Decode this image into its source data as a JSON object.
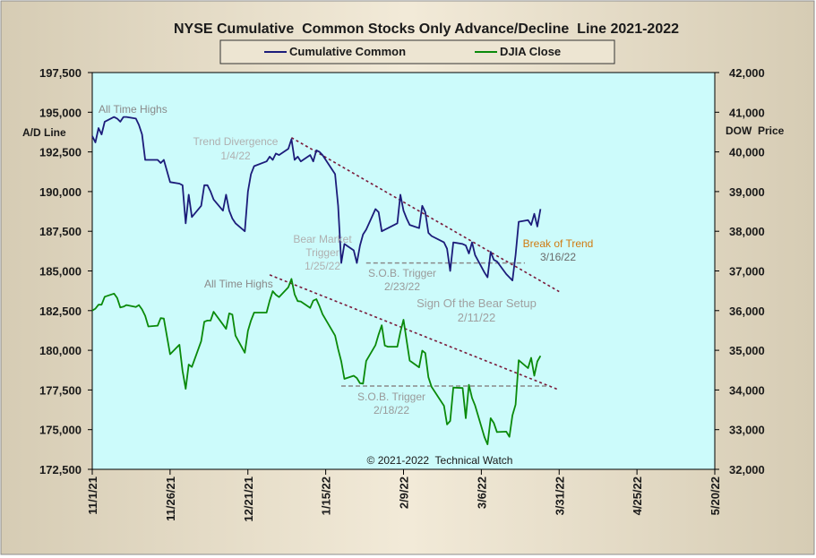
{
  "chart_data": {
    "type": "line",
    "title": "NYSE Cumulative  Common Stocks Only Advance/Decline  Line 2021-2022",
    "ylabel_left": "A/D Line",
    "ylabel_right": "DOW  Price",
    "copyright": "© 2021-2022  Technical Watch",
    "x_ticks": [
      "11/1/21",
      "11/26/21",
      "12/21/21",
      "1/15/22",
      "2/9/22",
      "3/6/22",
      "3/31/22",
      "4/25/22",
      "5/20/22"
    ],
    "x_range": [
      "2021-11-01",
      "2022-05-20"
    ],
    "y_left_ticks": [
      "172,500",
      "175,000",
      "177,500",
      "180,000",
      "182,500",
      "185,000",
      "187,500",
      "190,000",
      "192,500",
      "195,000",
      "197,500"
    ],
    "y_left_range": [
      172500,
      197500
    ],
    "y_right_ticks": [
      "32,000",
      "33,000",
      "34,000",
      "35,000",
      "36,000",
      "37,000",
      "38,000",
      "39,000",
      "40,000",
      "41,000",
      "42,000"
    ],
    "y_right_range": [
      32000,
      42000
    ],
    "grid": false,
    "legend_position": "top-center",
    "series": [
      {
        "name": "Cumulative Common",
        "axis": "left",
        "color": "#1c1c7a",
        "x": [
          "2021-11-01",
          "2021-11-02",
          "2021-11-03",
          "2021-11-04",
          "2021-11-05",
          "2021-11-08",
          "2021-11-09",
          "2021-11-10",
          "2021-11-11",
          "2021-11-12",
          "2021-11-15",
          "2021-11-16",
          "2021-11-17",
          "2021-11-18",
          "2021-11-19",
          "2021-11-22",
          "2021-11-23",
          "2021-11-24",
          "2021-11-26",
          "2021-11-29",
          "2021-11-30",
          "2021-12-01",
          "2021-12-02",
          "2021-12-03",
          "2021-12-06",
          "2021-12-07",
          "2021-12-08",
          "2021-12-09",
          "2021-12-10",
          "2021-12-13",
          "2021-12-14",
          "2021-12-15",
          "2021-12-16",
          "2021-12-17",
          "2021-12-20",
          "2021-12-21",
          "2021-12-22",
          "2021-12-23",
          "2021-12-27",
          "2021-12-28",
          "2021-12-29",
          "2021-12-30",
          "2021-12-31",
          "2022-01-03",
          "2022-01-04",
          "2022-01-05",
          "2022-01-06",
          "2022-01-07",
          "2022-01-10",
          "2022-01-11",
          "2022-01-12",
          "2022-01-13",
          "2022-01-14",
          "2022-01-18",
          "2022-01-19",
          "2022-01-20",
          "2022-01-21",
          "2022-01-24",
          "2022-01-25",
          "2022-01-26",
          "2022-01-27",
          "2022-01-28",
          "2022-01-31",
          "2022-02-01",
          "2022-02-02",
          "2022-02-03",
          "2022-02-04",
          "2022-02-07",
          "2022-02-08",
          "2022-02-09",
          "2022-02-10",
          "2022-02-11",
          "2022-02-14",
          "2022-02-15",
          "2022-02-16",
          "2022-02-17",
          "2022-02-18",
          "2022-02-22",
          "2022-02-23",
          "2022-02-24",
          "2022-02-25",
          "2022-02-28",
          "2022-03-01",
          "2022-03-02",
          "2022-03-03",
          "2022-03-04",
          "2022-03-07",
          "2022-03-08",
          "2022-03-09",
          "2022-03-10",
          "2022-03-11",
          "2022-03-14",
          "2022-03-15",
          "2022-03-16",
          "2022-03-17",
          "2022-03-18",
          "2022-03-21",
          "2022-03-22",
          "2022-03-23",
          "2022-03-24",
          "2022-03-25"
        ],
        "values": [
          193500,
          193100,
          194000,
          193600,
          194400,
          194700,
          194600,
          194400,
          194700,
          194700,
          194600,
          194200,
          193600,
          192000,
          192000,
          192000,
          191800,
          192000,
          190600,
          190500,
          190400,
          188000,
          189800,
          188400,
          189100,
          190400,
          190400,
          190000,
          189500,
          188800,
          189800,
          188800,
          188300,
          188000,
          187500,
          190000,
          191100,
          191600,
          191900,
          192200,
          192000,
          192400,
          192300,
          192700,
          193300,
          192000,
          192200,
          191900,
          192300,
          191900,
          192600,
          192500,
          192300,
          191100,
          189100,
          185500,
          186700,
          186300,
          185500,
          186600,
          187300,
          187600,
          188900,
          188700,
          187500,
          187600,
          187700,
          188000,
          189800,
          188800,
          188300,
          187900,
          187700,
          189100,
          188700,
          187400,
          187200,
          186800,
          186400,
          185000,
          186800,
          186700,
          186600,
          186100,
          186800,
          186000,
          184900,
          184600,
          186200,
          185700,
          185600,
          184800,
          184600,
          184400,
          186000,
          188100,
          188200,
          187900,
          188600,
          187800,
          188900
        ]
      },
      {
        "name": "DJIA Close",
        "axis": "right",
        "color": "#0a8a0a",
        "x": [
          "2021-11-01",
          "2021-11-02",
          "2021-11-03",
          "2021-11-04",
          "2021-11-05",
          "2021-11-08",
          "2021-11-09",
          "2021-11-10",
          "2021-11-11",
          "2021-11-12",
          "2021-11-15",
          "2021-11-16",
          "2021-11-17",
          "2021-11-18",
          "2021-11-19",
          "2021-11-22",
          "2021-11-23",
          "2021-11-24",
          "2021-11-26",
          "2021-11-29",
          "2021-11-30",
          "2021-12-01",
          "2021-12-02",
          "2021-12-03",
          "2021-12-06",
          "2021-12-07",
          "2021-12-08",
          "2021-12-09",
          "2021-12-10",
          "2021-12-13",
          "2021-12-14",
          "2021-12-15",
          "2021-12-16",
          "2021-12-17",
          "2021-12-20",
          "2021-12-21",
          "2021-12-22",
          "2021-12-23",
          "2021-12-27",
          "2021-12-28",
          "2021-12-29",
          "2021-12-30",
          "2021-12-31",
          "2022-01-03",
          "2022-01-04",
          "2022-01-05",
          "2022-01-06",
          "2022-01-07",
          "2022-01-10",
          "2022-01-11",
          "2022-01-12",
          "2022-01-13",
          "2022-01-14",
          "2022-01-18",
          "2022-01-19",
          "2022-01-20",
          "2022-01-21",
          "2022-01-24",
          "2022-01-25",
          "2022-01-26",
          "2022-01-27",
          "2022-01-28",
          "2022-01-31",
          "2022-02-01",
          "2022-02-02",
          "2022-02-03",
          "2022-02-04",
          "2022-02-07",
          "2022-02-08",
          "2022-02-09",
          "2022-02-10",
          "2022-02-11",
          "2022-02-14",
          "2022-02-15",
          "2022-02-16",
          "2022-02-17",
          "2022-02-18",
          "2022-02-22",
          "2022-02-23",
          "2022-02-24",
          "2022-02-25",
          "2022-02-28",
          "2022-03-01",
          "2022-03-02",
          "2022-03-03",
          "2022-03-04",
          "2022-03-07",
          "2022-03-08",
          "2022-03-09",
          "2022-03-10",
          "2022-03-11",
          "2022-03-14",
          "2022-03-15",
          "2022-03-16",
          "2022-03-17",
          "2022-03-18",
          "2022-03-21",
          "2022-03-22",
          "2022-03-23",
          "2022-03-24",
          "2022-03-25"
        ],
        "values": [
          36000,
          36050,
          36150,
          36150,
          36350,
          36430,
          36320,
          36080,
          36100,
          36140,
          36090,
          36140,
          36030,
          35870,
          35600,
          35620,
          35810,
          35800,
          34900,
          35140,
          34480,
          34030,
          34640,
          34580,
          35230,
          35720,
          35750,
          35750,
          35970,
          35650,
          35540,
          35930,
          35900,
          35370,
          34940,
          35490,
          35750,
          35950,
          35950,
          36250,
          36490,
          36400,
          36340,
          36590,
          36800,
          36410,
          36240,
          36230,
          36070,
          36250,
          36290,
          36110,
          35910,
          35370,
          35030,
          34720,
          34280,
          34360,
          34300,
          34170,
          34160,
          34730,
          35130,
          35400,
          35630,
          35120,
          35090,
          35090,
          35460,
          35770,
          35240,
          34740,
          34570,
          34990,
          34930,
          34320,
          34080,
          33600,
          33130,
          33220,
          34060,
          34050,
          33290,
          34130,
          33800,
          33610,
          32810,
          32630,
          33290,
          33170,
          32940,
          32950,
          32820,
          33360,
          33630,
          34750,
          34550,
          34810,
          34360,
          34720,
          34860
        ]
      }
    ],
    "annotations": [
      {
        "id": "ann-ath-top",
        "lines": [
          "All Time Highs"
        ],
        "color": "#8a8a8a"
      },
      {
        "id": "ann-trend-div",
        "lines": [
          "Trend  Divergence",
          "1/4/22"
        ],
        "color": "#b0b0b0"
      },
      {
        "id": "ann-bear-trigger",
        "lines": [
          "Bear Market",
          "Trigger",
          "1/25/22"
        ],
        "color": "#b0b0b0"
      },
      {
        "id": "ann-sob-top",
        "lines": [
          "S.O.B. Trigger",
          "2/23/22"
        ],
        "color": "#9a9a9a"
      },
      {
        "id": "ann-break",
        "lines": [
          "Break of Trend",
          "3/16/22"
        ],
        "colors": [
          "#d07a10",
          "#6a6a6a"
        ]
      },
      {
        "id": "ann-ath-bottom",
        "lines": [
          "All Time Highs"
        ],
        "color": "#8a8a8a"
      },
      {
        "id": "ann-setup",
        "lines": [
          "Sign Of the Bear Setup",
          "2/11/22"
        ],
        "color": "#a0a0a0"
      },
      {
        "id": "ann-sob-bottom",
        "lines": [
          "S.O.B. Trigger",
          "2/18/22"
        ],
        "color": "#9a9a9a"
      }
    ],
    "trendlines": [
      {
        "axis": "left",
        "from": [
          "2022-01-04",
          193400
        ],
        "to": [
          "2022-03-31",
          183700
        ],
        "style": "dashed",
        "color": "#7a1a3a"
      },
      {
        "axis": "right",
        "from": [
          "2021-12-28",
          36900
        ],
        "to": [
          "2022-03-31",
          34000
        ],
        "style": "dashed",
        "color": "#7a1a3a"
      },
      {
        "axis": "left",
        "from": [
          "2022-01-28",
          185500
        ],
        "to": [
          "2022-03-20",
          185500
        ],
        "style": "dashed",
        "color": "#8a8a8a"
      },
      {
        "axis": "right",
        "from": [
          "2022-01-20",
          34100
        ],
        "to": [
          "2022-03-28",
          34100
        ],
        "style": "dashed",
        "color": "#8a8a8a"
      }
    ]
  }
}
